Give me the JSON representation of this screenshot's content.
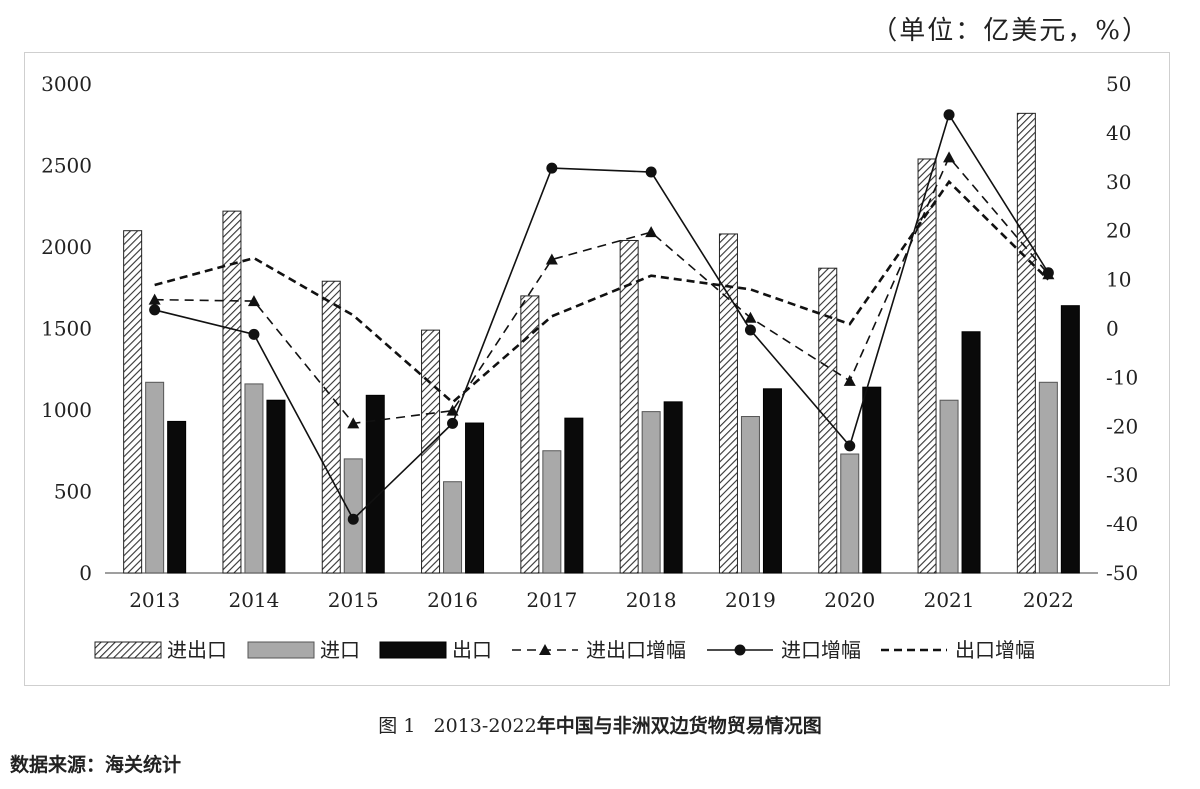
{
  "unit_label": "（单位：亿美元，%）",
  "caption": {
    "fig_no": "图 1",
    "years": "2013-2022",
    "title": "年中国与非洲双边货物贸易情况图"
  },
  "source": "数据来源：海关统计",
  "colors": {
    "import_bar": "#a9a9a9",
    "export_bar": "#0a0a0a",
    "total_bar_hatch": "#333333",
    "lines": "#111111"
  },
  "chart_data": {
    "type": "bar",
    "categories": [
      "2013",
      "2014",
      "2015",
      "2016",
      "2017",
      "2018",
      "2019",
      "2020",
      "2021",
      "2022"
    ],
    "y_left": {
      "range": [
        0,
        3000
      ],
      "ticks": [
        0,
        500,
        1000,
        1500,
        2000,
        2500,
        3000
      ]
    },
    "y_right": {
      "range": [
        -50,
        50
      ],
      "ticks": [
        -50,
        -40,
        -30,
        -20,
        -10,
        0,
        10,
        20,
        30,
        40,
        50
      ]
    },
    "grid": false,
    "legend_position": "bottom",
    "bar_series": [
      {
        "name": "进出口",
        "pattern": "hatch",
        "values": [
          2100,
          2220,
          1790,
          1490,
          1700,
          2040,
          2080,
          1870,
          2540,
          2820
        ]
      },
      {
        "name": "进口",
        "pattern": "gray",
        "values": [
          1170,
          1160,
          700,
          560,
          750,
          990,
          960,
          730,
          1060,
          1170
        ]
      },
      {
        "name": "出口",
        "pattern": "black",
        "values": [
          930,
          1060,
          1090,
          920,
          950,
          1050,
          1130,
          1140,
          1480,
          1640
        ]
      }
    ],
    "line_series": [
      {
        "name": "进出口增幅",
        "style": "dashed-triangle",
        "axis": "right",
        "values": [
          5.9,
          5.6,
          -19.4,
          -16.8,
          14.1,
          19.7,
          2.2,
          -10.7,
          35.0,
          11.1
        ]
      },
      {
        "name": "进口增幅",
        "style": "solid-circle",
        "axis": "right",
        "values": [
          3.8,
          -1.2,
          -39.0,
          -19.4,
          32.8,
          32.0,
          -0.3,
          -24.0,
          43.7,
          11.4
        ]
      },
      {
        "name": "出口增幅",
        "style": "dashed",
        "axis": "right",
        "values": [
          8.9,
          14.4,
          2.7,
          -15.1,
          2.5,
          10.8,
          8.0,
          0.9,
          30.0,
          10.0
        ]
      }
    ]
  }
}
